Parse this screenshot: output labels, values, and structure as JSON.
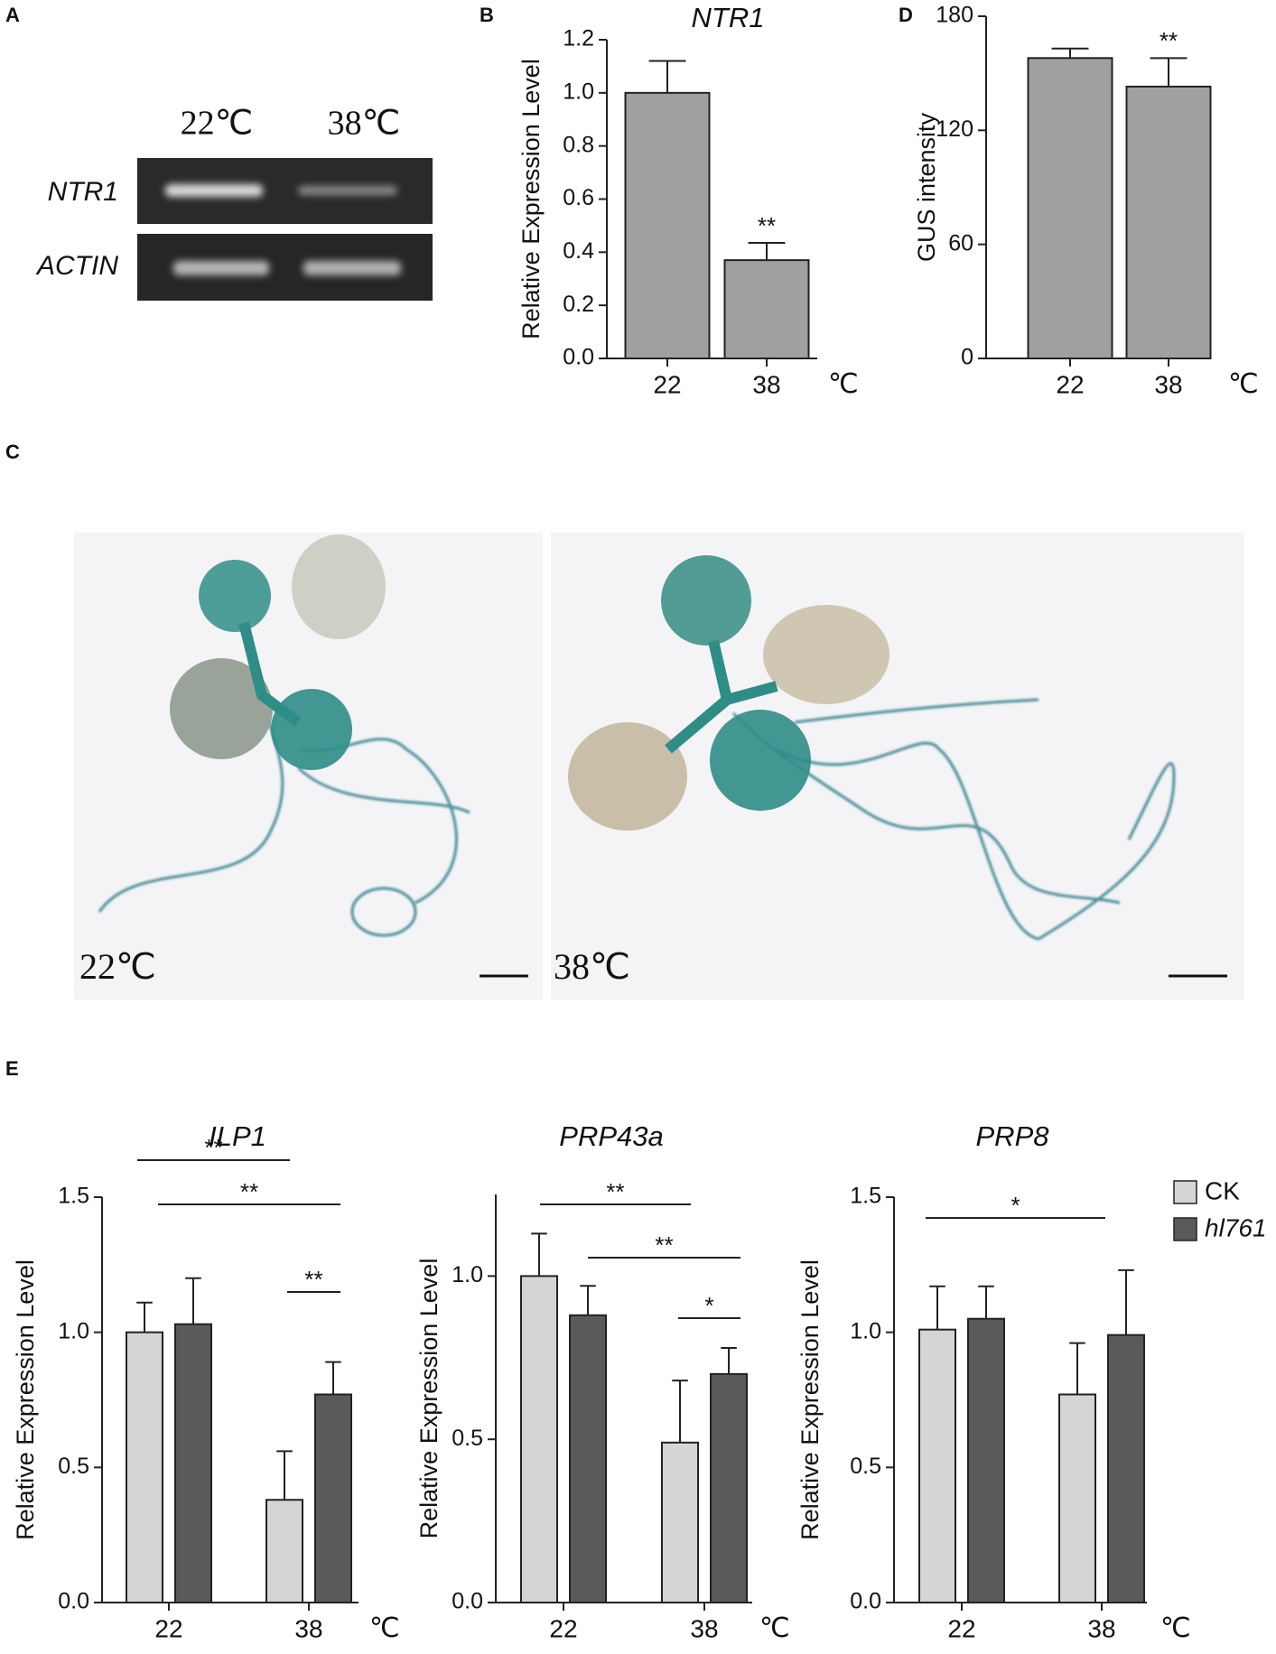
{
  "panel_labels": [
    "A",
    "B",
    "C",
    "D",
    "E"
  ],
  "gel": {
    "columns": [
      "22℃",
      "38℃"
    ],
    "rows": [
      "NTR1",
      "ACTIN"
    ]
  },
  "photo": {
    "labels": [
      "22℃",
      "38℃"
    ]
  },
  "chart_data": [
    {
      "type": "bar",
      "title": "NTR1",
      "y_label": "Relative Expression Level",
      "categories": [
        "22",
        "38"
      ],
      "unit": "℃",
      "values": [
        1.0,
        0.37
      ],
      "errors": [
        0.12,
        0.065
      ],
      "color": "#a0a0a0",
      "ylim": [
        0,
        1.2
      ],
      "yticks": [
        {
          "value": 0,
          "label": "0.0"
        },
        0.2,
        0.4,
        0.6,
        0.8,
        {
          "value": 1,
          "label": "1.0"
        },
        1.2
      ],
      "annotations": [
        "**"
      ]
    },
    {
      "type": "bar",
      "y_label": "GUS intensity",
      "categories": [
        "22",
        "38"
      ],
      "unit": "℃",
      "values": [
        158,
        143
      ],
      "errors": [
        5,
        15
      ],
      "color": "#a0a0a0",
      "ylim": [
        0,
        180
      ],
      "yticks": [
        0,
        60,
        120,
        180
      ],
      "annotations": [
        "**"
      ]
    },
    {
      "type": "bar",
      "title": "ILP1",
      "y_label": "Relative Expression Level",
      "categories": [
        "22",
        "38"
      ],
      "unit": "℃",
      "series": [
        {
          "name": "CK",
          "color": "#d4d6d6",
          "values": [
            1.0,
            0.38
          ],
          "errors": [
            0.11,
            0.18
          ]
        },
        {
          "name": "hl761",
          "color": "#5a5a5a",
          "values": [
            1.03,
            0.77
          ],
          "errors": [
            0.17,
            0.12
          ]
        }
      ],
      "ylim": [
        0,
        1.5
      ],
      "yticks": [
        {
          "value": 0,
          "label": "0.0"
        },
        0.5,
        {
          "value": 1,
          "label": "1.0"
        },
        1.5
      ],
      "annotations": [
        "**",
        "**",
        "**"
      ]
    },
    {
      "type": "bar",
      "title": "PRP43a",
      "y_label": "Relative Expression Level",
      "categories": [
        "22",
        "38"
      ],
      "unit": "℃",
      "series": [
        {
          "name": "CK",
          "color": "#d4d6d6",
          "values": [
            1.0,
            0.49
          ],
          "errors": [
            0.13,
            0.19
          ]
        },
        {
          "name": "hl761",
          "color": "#5a5a5a",
          "values": [
            0.88,
            0.7
          ],
          "errors": [
            0.09,
            0.08
          ]
        }
      ],
      "ylim": [
        0,
        1.25
      ],
      "yticks": [
        {
          "value": 0,
          "label": "0.0"
        },
        0.5,
        {
          "value": 1,
          "label": "1.0"
        }
      ],
      "annotations": [
        "**",
        "**",
        "*"
      ]
    },
    {
      "type": "bar",
      "title": "PRP8",
      "y_label": "Relative Expression Level",
      "categories": [
        "22",
        "38"
      ],
      "unit": "℃",
      "series": [
        {
          "name": "CK",
          "color": "#d4d6d6",
          "values": [
            1.01,
            0.77
          ],
          "errors": [
            0.16,
            0.19
          ]
        },
        {
          "name": "hl761",
          "color": "#5a5a5a",
          "values": [
            1.05,
            0.99
          ],
          "errors": [
            0.12,
            0.24
          ]
        }
      ],
      "ylim": [
        0,
        1.5
      ],
      "yticks": [
        {
          "value": 0,
          "label": "0.0"
        },
        0.5,
        {
          "value": 1,
          "label": "1.0"
        },
        1.5
      ],
      "annotations": [
        "*"
      ],
      "legend": "top-right"
    }
  ]
}
